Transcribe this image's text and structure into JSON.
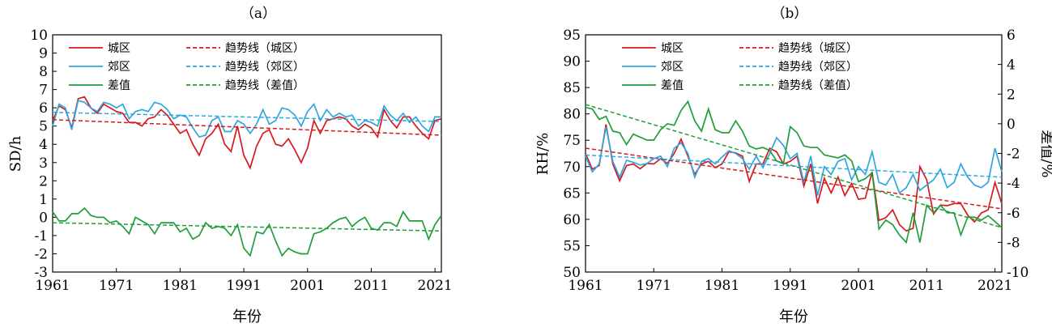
{
  "chart_data": [
    {
      "panel_label": "（a）",
      "type": "line",
      "xlabel": "年份",
      "ylabel": "SD/h",
      "xlim": [
        1961,
        2022
      ],
      "ylim": [
        -3,
        10
      ],
      "xticks": [
        1961,
        1971,
        1981,
        1991,
        2001,
        2011,
        2021
      ],
      "yticks": [
        -3,
        -2,
        -1,
        0,
        1,
        2,
        3,
        4,
        5,
        6,
        7,
        8,
        9,
        10
      ],
      "legend_placement": "top-left",
      "x_start": 1961,
      "series": [
        {
          "name": "城区",
          "color": "#d7191c",
          "style": "solid",
          "values": [
            5.3,
            6.1,
            5.9,
            4.9,
            6.5,
            6.6,
            6.0,
            5.7,
            6.2,
            6.0,
            5.8,
            5.7,
            5.2,
            5.2,
            5.0,
            5.4,
            5.5,
            5.9,
            5.6,
            5.1,
            4.6,
            4.8,
            4.0,
            3.4,
            4.3,
            4.6,
            5.1,
            4.0,
            3.6,
            5.0,
            3.4,
            2.7,
            3.9,
            4.6,
            4.8,
            4.0,
            3.9,
            4.3,
            3.7,
            3.0,
            3.8,
            5.3,
            4.6,
            5.3,
            5.4,
            5.5,
            5.4,
            5.0,
            4.8,
            5.1,
            4.9,
            4.4,
            5.9,
            5.3,
            4.9,
            5.5,
            5.5,
            5.0,
            4.6,
            4.3,
            5.3,
            5.4
          ]
        },
        {
          "name": "郊区",
          "color": "#2ea7e0",
          "style": "solid",
          "values": [
            5.0,
            6.2,
            6.0,
            4.8,
            6.4,
            6.3,
            6.0,
            5.8,
            6.3,
            6.2,
            6.0,
            6.2,
            5.4,
            5.8,
            5.9,
            5.8,
            6.3,
            6.2,
            5.9,
            5.4,
            5.6,
            5.5,
            4.9,
            4.4,
            4.5,
            5.3,
            5.5,
            4.7,
            4.7,
            5.3,
            5.1,
            4.6,
            5.1,
            5.9,
            5.1,
            5.3,
            6.0,
            5.9,
            5.6,
            5.0,
            5.8,
            6.2,
            5.3,
            5.9,
            5.5,
            5.7,
            5.5,
            5.6,
            5.0,
            5.3,
            5.2,
            5.0,
            6.1,
            5.6,
            5.3,
            5.7,
            5.2,
            5.5,
            5.0,
            4.7,
            5.5,
            5.5
          ]
        },
        {
          "name": "差值",
          "color": "#1f9e3a",
          "style": "solid",
          "values": [
            0.3,
            -0.2,
            -0.2,
            0.2,
            0.2,
            0.5,
            0.1,
            0.0,
            0.0,
            -0.3,
            -0.2,
            -0.5,
            -0.9,
            0.0,
            -0.2,
            -0.4,
            -0.9,
            -0.3,
            -0.3,
            -0.3,
            -0.8,
            -0.6,
            -1.2,
            -1.0,
            -0.3,
            -0.6,
            -0.5,
            -0.6,
            -1.0,
            -0.4,
            -1.7,
            -2.1,
            -0.8,
            -0.9,
            -0.4,
            -1.3,
            -2.1,
            -1.7,
            -1.9,
            -2.0,
            -2.0,
            -0.9,
            -0.8,
            -0.6,
            -0.3,
            -0.1,
            0.0,
            -0.5,
            -0.2,
            0.0,
            -0.6,
            -0.7,
            -0.3,
            -0.3,
            -0.5,
            0.3,
            -0.2,
            -0.2,
            -0.2,
            -1.2,
            -0.4,
            0.1
          ]
        },
        {
          "name": "趋势线（城区）",
          "color": "#d7191c",
          "style": "dashed",
          "x": [
            1961,
            2022
          ],
          "values": [
            5.35,
            4.5
          ]
        },
        {
          "name": "趋势线（郊区）",
          "color": "#2ea7e0",
          "style": "dashed",
          "x": [
            1961,
            2022
          ],
          "values": [
            5.75,
            5.25
          ]
        },
        {
          "name": "趋势线（差值）",
          "color": "#1f9e3a",
          "style": "dashed",
          "x": [
            1961,
            2022
          ],
          "values": [
            -0.3,
            -0.75
          ]
        }
      ]
    },
    {
      "panel_label": "（b）",
      "type": "line",
      "xlabel": "年份",
      "ylabel": "RH/%",
      "y2label": "差值/%",
      "xlim": [
        1961,
        2022
      ],
      "ylim": [
        50,
        95
      ],
      "y2lim": [
        -10,
        6
      ],
      "xticks": [
        1961,
        1971,
        1981,
        1991,
        2001,
        2011,
        2021
      ],
      "yticks": [
        50,
        55,
        60,
        65,
        70,
        75,
        80,
        85,
        90,
        95
      ],
      "y2ticks": [
        -10,
        -8,
        -6,
        -4,
        -2,
        0,
        2,
        4,
        6
      ],
      "legend_placement": "top-left",
      "x_start": 1961,
      "series": [
        {
          "name": "城区",
          "color": "#d7191c",
          "style": "solid",
          "axis": "left",
          "values": [
            72.5,
            69.5,
            70.2,
            78.0,
            70.5,
            67.3,
            70.2,
            70.5,
            69.6,
            70.6,
            70.5,
            71.5,
            70.6,
            72.5,
            75.2,
            72.0,
            68.5,
            70.5,
            71.0,
            69.8,
            70.5,
            72.8,
            72.6,
            72.0,
            67.2,
            70.5,
            70.5,
            73.5,
            72.8,
            70.5,
            71.0,
            72.0,
            66.3,
            70.5,
            63.0,
            67.8,
            65.0,
            68.0,
            64.5,
            66.8,
            63.8,
            64.0,
            69.0,
            59.8,
            60.3,
            61.8,
            59.0,
            57.8,
            58.3,
            70.0,
            67.5,
            61.0,
            62.7,
            62.6,
            63.0,
            63.0,
            60.8,
            59.5,
            61.2,
            61.8,
            67.0,
            63.0
          ]
        },
        {
          "name": "郊区",
          "color": "#2ea7e0",
          "style": "solid",
          "axis": "left",
          "values": [
            72.0,
            69.0,
            70.5,
            77.5,
            71.0,
            68.0,
            71.2,
            70.8,
            70.3,
            70.6,
            71.5,
            72.0,
            70.0,
            73.5,
            74.5,
            72.5,
            68.0,
            71.0,
            71.5,
            70.5,
            71.8,
            73.0,
            72.5,
            71.5,
            69.5,
            72.0,
            69.8,
            72.5,
            75.5,
            74.0,
            71.5,
            72.5,
            67.0,
            72.0,
            64.5,
            70.0,
            68.5,
            71.0,
            71.5,
            67.5,
            70.0,
            68.5,
            72.8,
            67.0,
            66.5,
            68.5,
            65.0,
            66.0,
            68.5,
            65.5,
            66.5,
            67.5,
            69.5,
            66.0,
            67.0,
            70.5,
            68.0,
            66.5,
            66.0,
            67.0,
            73.5,
            69.0
          ]
        },
        {
          "name": "差值",
          "color": "#1f9e3a",
          "style": "solid",
          "axis": "right",
          "values": [
            1.1,
            1.0,
            0.3,
            0.5,
            -0.5,
            -0.6,
            -1.4,
            -0.7,
            -0.9,
            -1.1,
            -1.1,
            -0.4,
            0.0,
            -0.1,
            0.9,
            1.5,
            0.2,
            -0.5,
            1.0,
            -0.4,
            -0.6,
            -0.6,
            0.2,
            -0.5,
            -1.5,
            -1.7,
            -1.6,
            -1.8,
            -2.5,
            -2.7,
            -0.2,
            -0.6,
            -1.5,
            -1.6,
            -1.6,
            -2.1,
            -2.2,
            -2.3,
            -2.1,
            -2.5,
            -3.9,
            -3.7,
            -3.3,
            -7.1,
            -6.5,
            -6.8,
            -7.5,
            -8.0,
            -6.0,
            -8.0,
            -5.5,
            -6.0,
            -5.5,
            -6.0,
            -6.0,
            -7.5,
            -6.3,
            -6.3,
            -6.5,
            -6.2,
            -6.6,
            -7.0
          ]
        },
        {
          "name": "趋势线（城区）",
          "color": "#d7191c",
          "style": "dashed",
          "axis": "left",
          "x": [
            1961,
            2022
          ],
          "values": [
            73.5,
            62.0
          ]
        },
        {
          "name": "趋势线（郊区）",
          "color": "#2ea7e0",
          "style": "dashed",
          "axis": "left",
          "x": [
            1961,
            2022
          ],
          "values": [
            72.2,
            68.0
          ]
        },
        {
          "name": "趋势线（差值）",
          "color": "#1f9e3a",
          "style": "dashed",
          "axis": "right",
          "x": [
            1961,
            2022
          ],
          "values": [
            1.3,
            -7.0
          ]
        }
      ]
    }
  ]
}
